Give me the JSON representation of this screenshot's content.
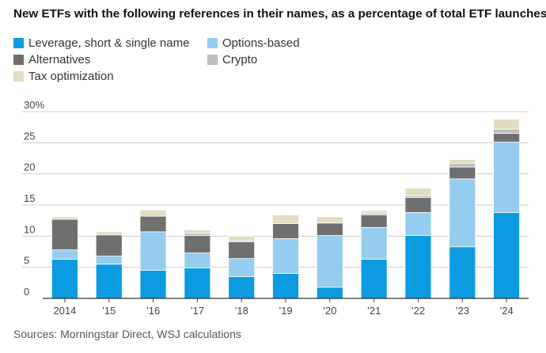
{
  "title": "New ETFs with the following references in their names, as a percentage of total ETF launches",
  "source": "Sources: Morningstar Direct, WSJ calculations",
  "colors": {
    "leverage": "#0a9be0",
    "options": "#94cdef",
    "alternatives": "#6f6f6f",
    "crypto": "#bdbdbd",
    "tax": "#e2dcc0"
  },
  "chart_data": {
    "type": "bar",
    "stacked": true,
    "title": "New ETFs with the following references in their names, as a percentage of total ETF launches",
    "xlabel": "",
    "ylabel": "",
    "ylim": [
      0,
      30
    ],
    "yticks": [
      0,
      5,
      10,
      15,
      20,
      25,
      30
    ],
    "ytick_labels": [
      "0",
      "5",
      "10",
      "15",
      "20",
      "25",
      "30%"
    ],
    "grid": true,
    "legend_position": "top-left",
    "categories": [
      "2014",
      "’15",
      "’16",
      "’17",
      "’18",
      "’19",
      "’20",
      "’21",
      "’22",
      "’23",
      "’24"
    ],
    "series": [
      {
        "name": "Leverage, short & single name",
        "color_key": "leverage",
        "values": [
          6.3,
          5.5,
          4.5,
          4.9,
          3.5,
          4.0,
          1.8,
          6.3,
          10.1,
          8.3,
          13.8
        ]
      },
      {
        "name": "Options-based",
        "color_key": "options",
        "values": [
          1.5,
          1.3,
          6.2,
          2.4,
          2.9,
          5.6,
          8.3,
          5.1,
          3.7,
          10.9,
          11.3
        ]
      },
      {
        "name": "Alternatives",
        "color_key": "alternatives",
        "values": [
          4.9,
          3.4,
          2.5,
          2.8,
          2.7,
          2.4,
          2.0,
          2.0,
          2.4,
          1.9,
          1.4
        ]
      },
      {
        "name": "Crypto",
        "color_key": "crypto",
        "values": [
          0.0,
          0.0,
          0.0,
          0.4,
          0.2,
          0.0,
          0.0,
          0.3,
          0.3,
          0.6,
          0.7
        ]
      },
      {
        "name": "Tax optimization",
        "color_key": "tax",
        "values": [
          0.4,
          0.5,
          1.0,
          0.5,
          0.7,
          1.4,
          1.0,
          0.4,
          1.2,
          0.6,
          1.6
        ]
      }
    ]
  }
}
